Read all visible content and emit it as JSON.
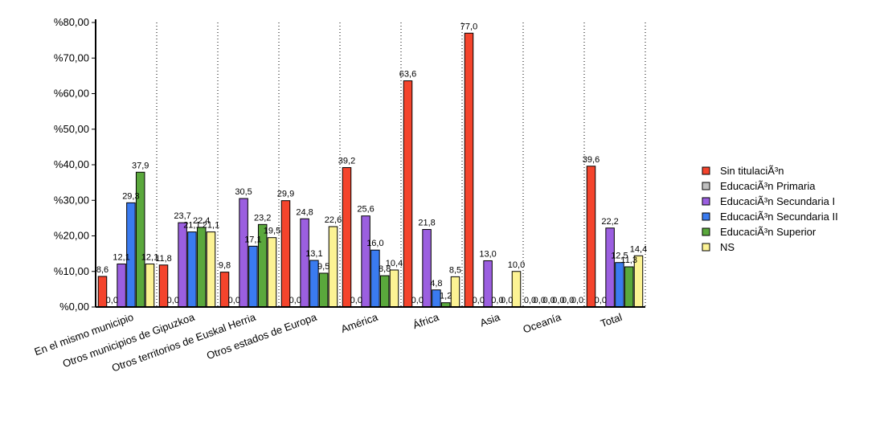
{
  "chart_data": {
    "type": "bar",
    "title": "",
    "xlabel": "",
    "ylabel": "",
    "ylim": [
      0,
      80
    ],
    "ytick_values": [
      0,
      10,
      20,
      30,
      40,
      50,
      60,
      70,
      80
    ],
    "ytick_labels": [
      "%0,00",
      "%10,00",
      "%20,00",
      "%30,00",
      "%40,00",
      "%50,00",
      "%60,00",
      "%70,00",
      "%80,00"
    ],
    "categories": [
      "En el mismo municipio",
      "Otros municipios de Gipuzkoa",
      "Otros territorios de Euskal Herria",
      "Otros estados de Europa",
      "América",
      "África",
      "Asia",
      "Oceanía",
      "Total"
    ],
    "grid": "vertical-dotted-between-categories",
    "legend_position": "right",
    "series": [
      {
        "name": "Sin titulaciÃ³n",
        "color": "#f4442c",
        "values": [
          8.6,
          11.8,
          9.8,
          29.9,
          39.2,
          63.6,
          77.0,
          0.0,
          39.6
        ],
        "labels": [
          "8,6",
          "11,8",
          "9,8",
          "29,9",
          "39,2",
          "63,6",
          "77,0",
          "0,0",
          "39,6"
        ]
      },
      {
        "name": "EducaciÃ³n Primaria",
        "color": "#bfbfbf",
        "values": [
          0.0,
          0.0,
          0.0,
          0.0,
          0.0,
          0.0,
          0.0,
          0.0,
          0.0
        ],
        "labels": [
          "0,0",
          "0,0",
          "0,0",
          "0,0",
          "0,0",
          "0,0",
          "0,0",
          "0,0",
          "0,0"
        ]
      },
      {
        "name": "EducaciÃ³n Secundaria I",
        "color": "#9b5fe0",
        "values": [
          12.1,
          23.7,
          30.5,
          24.8,
          25.6,
          21.8,
          13.0,
          0.0,
          22.2
        ],
        "labels": [
          "12,1",
          "23,7",
          "30,5",
          "24,8",
          "25,6",
          "21,8",
          "13,0",
          "0,0",
          "22,2"
        ]
      },
      {
        "name": "EducaciÃ³n Secundaria II",
        "color": "#3a7bf0",
        "values": [
          29.3,
          21.1,
          17.1,
          13.1,
          16.0,
          4.8,
          0.0,
          0.0,
          12.5
        ],
        "labels": [
          "29,3",
          "21,1",
          "17,1",
          "13,1",
          "16,0",
          "4,8",
          "0,0",
          "0,0",
          "12,5"
        ]
      },
      {
        "name": "EducaciÃ³n Superior",
        "color": "#5aa83c",
        "values": [
          37.9,
          22.4,
          23.2,
          9.5,
          8.8,
          1.2,
          0.0,
          0.0,
          11.3
        ],
        "labels": [
          "37,9",
          "22,4",
          "23,2",
          "9,5",
          "8,8",
          "1,2",
          "0,0",
          "0,0",
          "11,3"
        ]
      },
      {
        "name": "NS",
        "color": "#fcf394",
        "values": [
          12.1,
          21.1,
          19.5,
          22.6,
          10.4,
          8.5,
          10.0,
          0.0,
          14.4
        ],
        "labels": [
          "12,1",
          "21,1",
          "19,5",
          "22,6",
          "10,4",
          "8,5",
          "10,0",
          "0,0",
          "14,4"
        ]
      }
    ]
  }
}
